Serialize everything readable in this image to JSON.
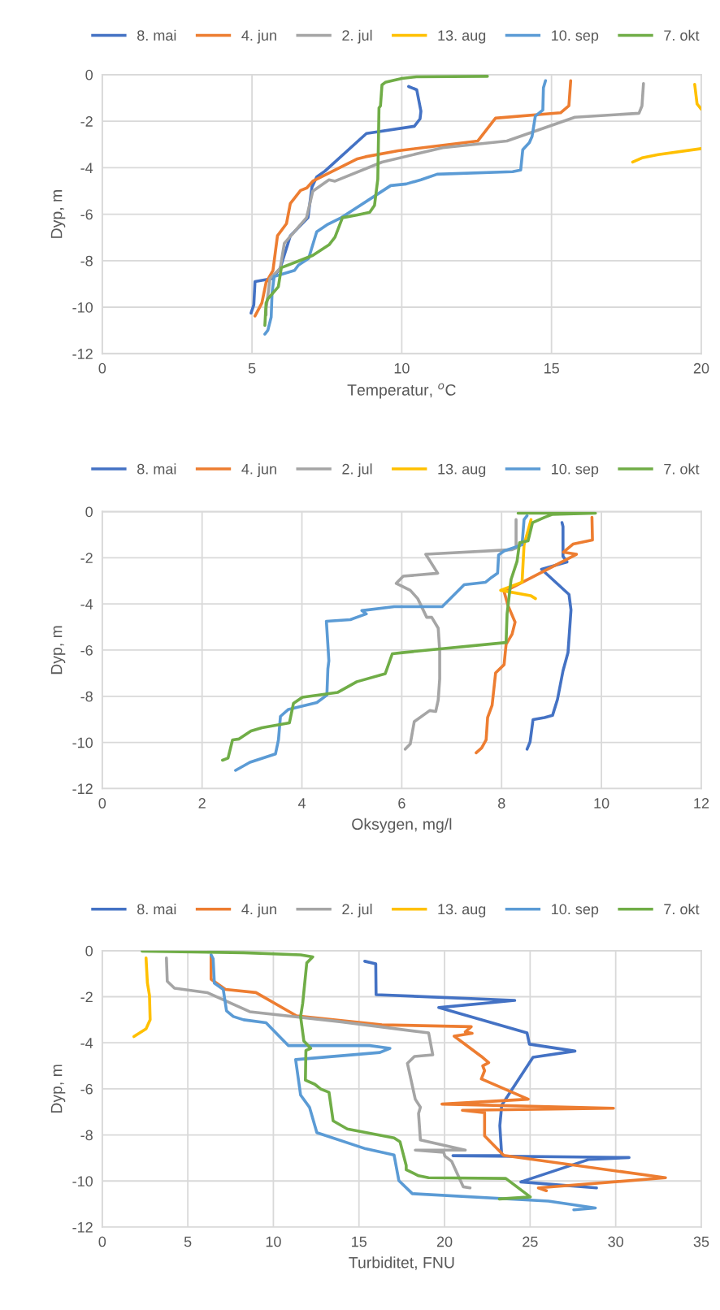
{
  "chart_data": [
    {
      "type": "line",
      "xlabel": "Temperatur, $^{o}$C",
      "ylabel": "Dyp, m",
      "xlim": [
        0,
        20
      ],
      "ylim": [
        -12,
        0
      ],
      "xticks": [
        0,
        5,
        10,
        15,
        20
      ],
      "yticks": [
        -12,
        -10,
        -8,
        -6,
        -4,
        -2,
        0
      ],
      "grid": true,
      "legend": "top",
      "series": [
        {
          "name": "8. mai",
          "color": "#4472c4",
          "x": [
            10.23,
            10.5,
            10.64,
            10.61,
            10.42,
            8.82,
            7.44,
            7.16,
            7.0,
            6.87,
            6.28,
            5.94,
            5.67,
            5.1,
            5.06,
            4.97
          ],
          "values": [
            -0.51,
            -0.65,
            -1.57,
            -1.9,
            -2.22,
            -2.53,
            -4.14,
            -4.4,
            -4.84,
            -6.15,
            -6.93,
            -8.33,
            -8.77,
            -8.9,
            -9.9,
            -10.25
          ]
        },
        {
          "name": "4. jun",
          "color": "#ed7d31",
          "x": [
            15.64,
            15.58,
            15.3,
            13.13,
            12.54,
            9.88,
            8.79,
            8.52,
            7.03,
            6.83,
            6.62,
            6.28,
            6.15,
            5.85,
            5.7,
            5.47,
            5.33,
            5.1
          ],
          "values": [
            -0.26,
            -1.34,
            -1.64,
            -1.87,
            -2.85,
            -3.27,
            -3.53,
            -3.62,
            -4.58,
            -4.87,
            -4.98,
            -5.54,
            -6.41,
            -6.93,
            -8.42,
            -8.94,
            -9.82,
            -10.38
          ]
        },
        {
          "name": "2. jul",
          "color": "#a5a5a5",
          "x": [
            18.07,
            18.02,
            17.92,
            15.78,
            13.51,
            11.37,
            9.34,
            7.77,
            7.57,
            7.03,
            6.82,
            6.08,
            5.94,
            5.6,
            5.56,
            5.47,
            5.47
          ],
          "values": [
            -0.38,
            -1.34,
            -1.66,
            -1.83,
            -2.85,
            -3.14,
            -3.76,
            -4.58,
            -4.52,
            -5.01,
            -6.15,
            -7.25,
            -8.33,
            -8.77,
            -9.2,
            -10.08,
            -10.34
          ]
        },
        {
          "name": "13. aug",
          "color": "#ffc000",
          "x": [
            19.78,
            19.86,
            20,
            null,
            17.71,
            18.02,
            18.56,
            20
          ],
          "values": [
            -0.42,
            -1.26,
            -1.48,
            null,
            -3.76,
            -3.58,
            -3.44,
            -3.18
          ]
        },
        {
          "name": "10. sep",
          "color": "#5b9bd5",
          "x": [
            14.8,
            14.73,
            14.71,
            14.46,
            14.35,
            14.26,
            14.04,
            13.97,
            13.7,
            11.18,
            10.64,
            10.15,
            9.63,
            9.13,
            7.98,
            7.5,
            7.16,
            6.89,
            6.55,
            6.42,
            5.74,
            5.67,
            5.64,
            5.53,
            5.43
          ],
          "values": [
            -0.26,
            -0.56,
            -1.52,
            -1.78,
            -2.66,
            -2.92,
            -3.23,
            -4.1,
            -4.17,
            -4.28,
            -4.52,
            -4.7,
            -4.77,
            -5.19,
            -6.15,
            -6.46,
            -6.76,
            -7.9,
            -8.19,
            -8.42,
            -8.68,
            -9.38,
            -10.43,
            -10.99,
            -11.16
          ]
        },
        {
          "name": "7. okt",
          "color": "#70ad47",
          "x": [
            12.86,
            10.49,
            10.01,
            9.74,
            9.45,
            9.34,
            9.29,
            9.24,
            9.2,
            9.09,
            8.93,
            8.52,
            8.02,
            7.77,
            7.57,
            7.03,
            6.62,
            5.98,
            5.88,
            5.53,
            5.47,
            5.43
          ],
          "values": [
            -0.07,
            -0.09,
            -0.16,
            -0.24,
            -0.33,
            -0.44,
            -1.34,
            -1.43,
            -4.49,
            -5.62,
            -5.92,
            -6.03,
            -6.15,
            -6.99,
            -7.32,
            -7.77,
            -7.98,
            -8.3,
            -9.12,
            -9.64,
            -9.82,
            -10.78
          ]
        }
      ]
    },
    {
      "type": "line",
      "xlabel": "Oksygen, mg/l",
      "ylabel": "Dyp, m",
      "xlim": [
        0,
        12
      ],
      "ylim": [
        -12,
        0
      ],
      "xticks": [
        0,
        2,
        4,
        6,
        8,
        10,
        12
      ],
      "yticks": [
        -12,
        -10,
        -8,
        -6,
        -4,
        -2,
        0
      ],
      "grid": true,
      "legend": "top",
      "series": [
        {
          "name": "8. mai",
          "color": "#4472c4",
          "x": [
            9.21,
            9.23,
            9.23,
            9.31,
            8.8,
            9.35,
            9.39,
            9.33,
            9.23,
            9.12,
            9.02,
            8.86,
            8.63,
            8.57,
            8.51
          ],
          "values": [
            -0.48,
            -0.65,
            -1.94,
            -2.18,
            -2.5,
            -3.59,
            -4.26,
            -6.11,
            -6.9,
            -8.13,
            -8.83,
            -8.92,
            -9.01,
            -9.98,
            -10.29
          ]
        },
        {
          "name": "4. jun",
          "color": "#ed7d31",
          "x": [
            9.81,
            9.82,
            9.43,
            9.24,
            9.5,
            8.05,
            8.13,
            8.27,
            8.21,
            8.09,
            8.05,
            7.88,
            7.81,
            7.72,
            7.69,
            7.6,
            7.49
          ],
          "values": [
            -0.25,
            -1.23,
            -1.41,
            -1.76,
            -1.85,
            -3.47,
            -4.08,
            -4.79,
            -5.31,
            -5.75,
            -6.63,
            -6.99,
            -8.39,
            -8.92,
            -9.89,
            -10.24,
            -10.45
          ]
        },
        {
          "name": "2. jul",
          "color": "#a5a5a5",
          "x": [
            8.29,
            8.29,
            8.21,
            6.48,
            6.72,
            6.03,
            5.89,
            6.17,
            6.32,
            6.5,
            6.6,
            6.73,
            6.76,
            6.76,
            6.73,
            6.68,
            6.56,
            6.25,
            6.17,
            6.07
          ],
          "values": [
            -0.35,
            -1.58,
            -1.65,
            -1.85,
            -2.67,
            -2.8,
            -3.11,
            -3.41,
            -3.77,
            -4.58,
            -4.58,
            -5.05,
            -6.02,
            -7.25,
            -8.16,
            -8.66,
            -8.62,
            -9.1,
            -10.07,
            -10.29
          ]
        },
        {
          "name": "13. aug",
          "color": "#ffc000",
          "x": [
            8.59,
            8.45,
            8.41,
            7.98,
            8.58,
            8.68
          ],
          "values": [
            -0.35,
            -1.44,
            -3.06,
            -3.41,
            -3.64,
            -3.77
          ]
        },
        {
          "name": "10. sep",
          "color": "#5b9bd5",
          "x": [
            8.51,
            8.45,
            8.41,
            8.05,
            7.94,
            7.92,
            7.8,
            7.68,
            7.25,
            6.81,
            5.85,
            5.2,
            5.29,
            4.97,
            4.49,
            4.54,
            4.52,
            4.5,
            4.3,
            3.73,
            3.57,
            3.53,
            3.47,
            2.96,
            2.67
          ],
          "values": [
            -0.18,
            -0.35,
            -1.44,
            -1.71,
            -1.88,
            -2.67,
            -2.85,
            -3.06,
            -3.17,
            -4.12,
            -4.12,
            -4.29,
            -4.43,
            -4.68,
            -4.75,
            -6.46,
            -6.81,
            -7.95,
            -8.27,
            -8.57,
            -8.87,
            -9.89,
            -10.5,
            -10.86,
            -11.21
          ]
        },
        {
          "name": "7. okt",
          "color": "#70ad47",
          "x": [
            8.33,
            9.88,
            9.02,
            8.86,
            8.62,
            8.53,
            8.36,
            8.31,
            8.19,
            8.11,
            8.09,
            6.01,
            5.81,
            5.67,
            5.1,
            4.72,
            4.01,
            3.83,
            3.75,
            3.2,
            2.98,
            2.74,
            2.61,
            2.52,
            2.41
          ],
          "values": [
            -0.07,
            -0.07,
            -0.12,
            -0.25,
            -0.48,
            -1.27,
            -1.35,
            -2.15,
            -2.94,
            -4.43,
            -5.67,
            -6.11,
            -6.16,
            -7.02,
            -7.37,
            -7.83,
            -8.04,
            -8.31,
            -9.15,
            -9.36,
            -9.5,
            -9.85,
            -9.89,
            -10.68,
            -10.77
          ]
        }
      ]
    },
    {
      "type": "line",
      "xlabel": "Turbiditet, FNU",
      "ylabel": "Dyp, m",
      "xlim": [
        0,
        35
      ],
      "ylim": [
        -12,
        0
      ],
      "xticks": [
        0,
        5,
        10,
        15,
        20,
        25,
        30,
        35
      ],
      "yticks": [
        -12,
        -10,
        -8,
        -6,
        -4,
        -2,
        0
      ],
      "grid": true,
      "legend": "top",
      "series": [
        {
          "name": "8. mai",
          "color": "#4472c4",
          "x": [
            15.34,
            15.98,
            16.0,
            24.1,
            19.66,
            24.82,
            24.96,
            27.62,
            25.17,
            23.34,
            23.23,
            23.34,
            20.49,
            30.78,
            28.45,
            24.46,
            28.88
          ],
          "values": [
            -0.46,
            -0.57,
            -1.91,
            -2.16,
            -2.47,
            -3.57,
            -4.06,
            -4.36,
            -4.63,
            -6.71,
            -7.6,
            -8.89,
            -8.9,
            -8.98,
            -9.06,
            -10.04,
            -10.3
          ]
        },
        {
          "name": "4. jun",
          "color": "#ed7d31",
          "x": [
            6.36,
            6.36,
            7.2,
            8.98,
            11.35,
            16.34,
            21.56,
            21.21,
            21.61,
            20.56,
            22.15,
            22.58,
            22.23,
            22.34,
            22.15,
            24.89,
            19.85,
            29.87,
            21.04,
            22.34,
            22.34,
            23.46,
            32.91,
            25.48,
            25.95
          ],
          "values": [
            -0.21,
            -1.24,
            -1.68,
            -1.82,
            -2.83,
            -3.22,
            -3.3,
            -3.53,
            -3.59,
            -3.71,
            -4.59,
            -4.86,
            -5.0,
            -5.21,
            -5.57,
            -6.45,
            -6.66,
            -6.84,
            -6.93,
            -7.03,
            -8.04,
            -8.89,
            -9.86,
            -10.3,
            -10.42
          ]
        },
        {
          "name": "2. jul",
          "color": "#a5a5a5",
          "x": [
            3.75,
            3.8,
            4.22,
            6.13,
            8.62,
            13.96,
            19.07,
            19.31,
            18.24,
            17.83,
            18.29,
            18.59,
            18.48,
            18.59,
            21.21,
            18.29,
            19.95,
            20.02,
            20.42,
            21.09,
            21.49
          ],
          "values": [
            -0.32,
            -1.33,
            -1.63,
            -1.82,
            -2.65,
            -3.09,
            -3.57,
            -4.52,
            -4.59,
            -4.89,
            -6.45,
            -6.8,
            -7.07,
            -8.22,
            -8.66,
            -8.66,
            -8.75,
            -8.92,
            -9.15,
            -10.25,
            -10.3
          ]
        },
        {
          "name": "13. aug",
          "color": "#ffc000",
          "x": [
            2.56,
            2.64,
            2.76,
            2.8,
            2.56,
            1.85
          ],
          "values": [
            -0.32,
            -1.41,
            -1.94,
            -3.0,
            -3.39,
            -3.73
          ]
        },
        {
          "name": "10. sep",
          "color": "#5b9bd5",
          "x": [
            6.36,
            6.48,
            6.55,
            7.07,
            7.26,
            7.66,
            8.26,
            9.57,
            10.87,
            15.62,
            16.81,
            16.22,
            11.3,
            11.59,
            12.11,
            12.54,
            15.39,
            17.05,
            17.33,
            18.12,
            26.07,
            28.81,
            27.55
          ],
          "values": [
            -0.18,
            -0.35,
            -1.41,
            -1.68,
            -2.61,
            -2.86,
            -3.0,
            -3.13,
            -4.12,
            -4.12,
            -4.24,
            -4.42,
            -4.73,
            -6.27,
            -6.8,
            -7.9,
            -8.6,
            -8.87,
            -9.98,
            -10.55,
            -10.87,
            -11.17,
            -11.25
          ]
        },
        {
          "name": "7. okt",
          "color": "#70ad47",
          "x": [
            2.33,
            8.27,
            11.59,
            12.3,
            11.95,
            11.71,
            11.59,
            11.78,
            12.18,
            11.9,
            11.87,
            12.42,
            12.77,
            13.25,
            13.49,
            14.32,
            17.05,
            17.4,
            17.76,
            17.76,
            18.48,
            19.07,
            23.58,
            25.01,
            23.2
          ],
          "values": [
            -0.02,
            -0.09,
            -0.18,
            -0.27,
            -0.53,
            -2.3,
            -2.86,
            -3.92,
            -4.24,
            -4.33,
            -5.62,
            -5.8,
            -6.01,
            -6.15,
            -7.39,
            -7.74,
            -8.13,
            -8.3,
            -9.33,
            -9.51,
            -9.77,
            -9.86,
            -9.89,
            -10.69,
            -10.78
          ]
        }
      ]
    }
  ]
}
